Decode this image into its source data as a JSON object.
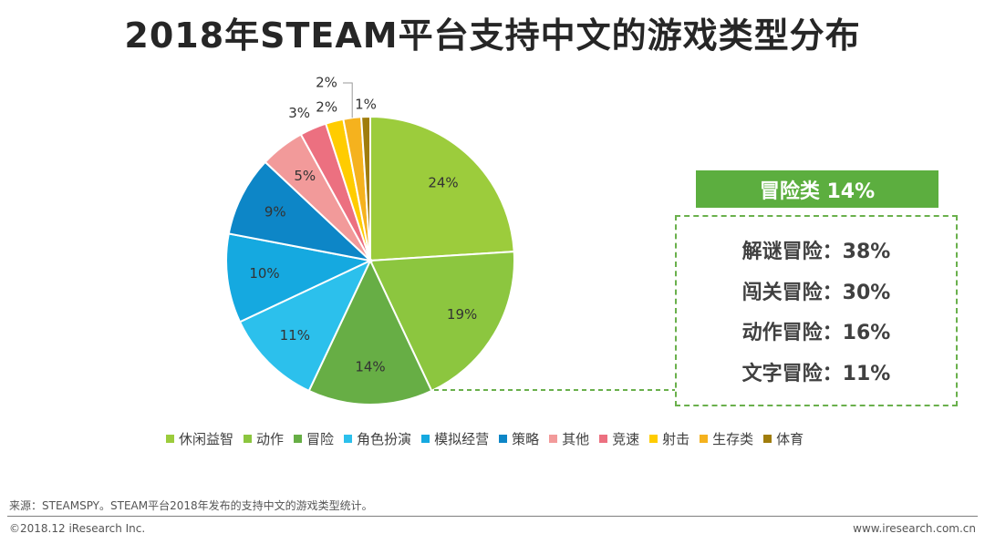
{
  "title": "2018年STEAM平台支持中文的游戏类型分布",
  "chart_data": {
    "type": "pie",
    "title": "2018年STEAM平台支持中文的游戏类型分布",
    "categories": [
      "休闲益智",
      "动作",
      "冒险",
      "角色扮演",
      "模拟经营",
      "策略",
      "其他",
      "竞速",
      "射击",
      "生存类",
      "体育"
    ],
    "values": [
      24,
      19,
      14,
      11,
      10,
      9,
      5,
      3,
      2,
      2,
      1
    ],
    "labels": [
      "24%",
      "19%",
      "14%",
      "11%",
      "10%",
      "9%",
      "5%",
      "3%",
      "2%",
      "2%",
      "1%"
    ],
    "colors": [
      "#9ccc3c",
      "#8cc63f",
      "#67ae45",
      "#2cc0ec",
      "#15a9e0",
      "#0d86c7",
      "#f29a9a",
      "#ec7080",
      "#ffcc00",
      "#f5b21e",
      "#a07d0c"
    ],
    "legend_position": "bottom"
  },
  "side_panel": {
    "header": "冒险类 14%",
    "rows": [
      "解谜冒险：38%",
      "闯关冒险：30%",
      "动作冒险：16%",
      "文字冒险：11%"
    ]
  },
  "footer": {
    "source": "来源：STEAMSPY。STEAM平台2018年发布的支持中文的游戏类型统计。",
    "copyright": "©2018.12 iResearch Inc.",
    "website": "www.iresearch.com.cn"
  }
}
